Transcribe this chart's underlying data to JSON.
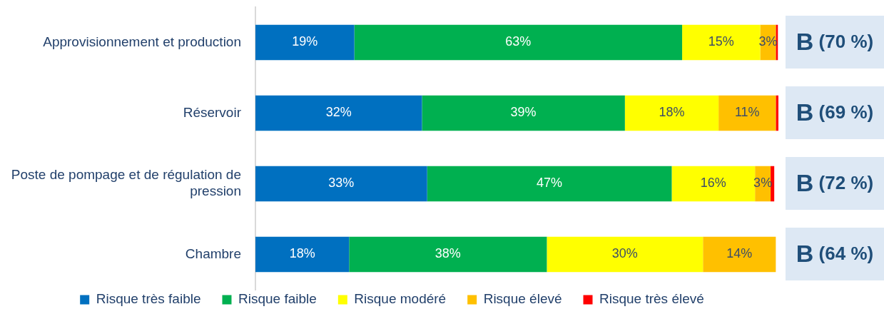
{
  "chart_data": {
    "type": "bar",
    "orientation": "horizontal",
    "stacked": true,
    "categories": [
      "Approvisionnement et production",
      "Réservoir",
      "Poste de pompage et de régulation de pression",
      "Chambre"
    ],
    "series": [
      {
        "name": "Risque très faible",
        "color": "#0070c0",
        "values": [
          19,
          32,
          33,
          18
        ],
        "value_labels": [
          "19%",
          "32%",
          "33%",
          "18%"
        ]
      },
      {
        "name": "Risque faible",
        "color": "#00b050",
        "values": [
          63,
          39,
          47,
          38
        ],
        "value_labels": [
          "63%",
          "39%",
          "47%",
          "38%"
        ]
      },
      {
        "name": "Risque modéré",
        "color": "#ffff00",
        "values": [
          15,
          18,
          16,
          30
        ],
        "value_labels": [
          "15%",
          "18%",
          "16%",
          "30%"
        ]
      },
      {
        "name": "Risque élevé",
        "color": "#ffc000",
        "values": [
          3,
          11,
          3,
          14
        ],
        "value_labels": [
          "3%",
          "11%",
          "3%",
          "14%"
        ]
      },
      {
        "name": "Risque très élevé",
        "color": "#ff0000",
        "values": [
          0.4,
          0.5,
          0.7,
          null
        ]
      }
    ],
    "annotations": [
      "B (70 %)",
      "B (69 %)",
      "B (72 %)",
      "B (64 %)"
    ],
    "legend": "bottom"
  }
}
